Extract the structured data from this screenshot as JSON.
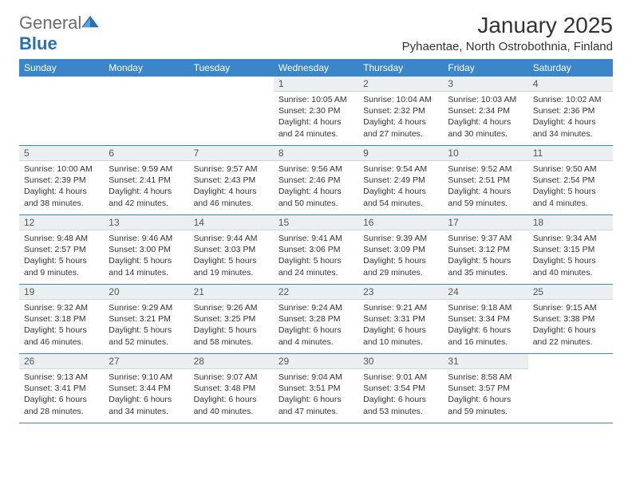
{
  "logo": {
    "text_part1": "General",
    "text_part2": "Blue",
    "icon_color": "#2a6fb5",
    "text_color": "#6b6b6b"
  },
  "title": "January 2025",
  "location": "Pyhaentae, North Ostrobothnia, Finland",
  "colors": {
    "header_bg": "#3a86c8",
    "header_text": "#ffffff",
    "daynum_bg": "#eceff1",
    "border": "#3a86c8",
    "text": "#333333"
  },
  "day_names": [
    "Sunday",
    "Monday",
    "Tuesday",
    "Wednesday",
    "Thursday",
    "Friday",
    "Saturday"
  ],
  "weeks": [
    [
      null,
      null,
      null,
      {
        "n": "1",
        "sunrise": "10:05 AM",
        "sunset": "2:30 PM",
        "daylight": "4 hours and 24 minutes."
      },
      {
        "n": "2",
        "sunrise": "10:04 AM",
        "sunset": "2:32 PM",
        "daylight": "4 hours and 27 minutes."
      },
      {
        "n": "3",
        "sunrise": "10:03 AM",
        "sunset": "2:34 PM",
        "daylight": "4 hours and 30 minutes."
      },
      {
        "n": "4",
        "sunrise": "10:02 AM",
        "sunset": "2:36 PM",
        "daylight": "4 hours and 34 minutes."
      }
    ],
    [
      {
        "n": "5",
        "sunrise": "10:00 AM",
        "sunset": "2:39 PM",
        "daylight": "4 hours and 38 minutes."
      },
      {
        "n": "6",
        "sunrise": "9:59 AM",
        "sunset": "2:41 PM",
        "daylight": "4 hours and 42 minutes."
      },
      {
        "n": "7",
        "sunrise": "9:57 AM",
        "sunset": "2:43 PM",
        "daylight": "4 hours and 46 minutes."
      },
      {
        "n": "8",
        "sunrise": "9:56 AM",
        "sunset": "2:46 PM",
        "daylight": "4 hours and 50 minutes."
      },
      {
        "n": "9",
        "sunrise": "9:54 AM",
        "sunset": "2:49 PM",
        "daylight": "4 hours and 54 minutes."
      },
      {
        "n": "10",
        "sunrise": "9:52 AM",
        "sunset": "2:51 PM",
        "daylight": "4 hours and 59 minutes."
      },
      {
        "n": "11",
        "sunrise": "9:50 AM",
        "sunset": "2:54 PM",
        "daylight": "5 hours and 4 minutes."
      }
    ],
    [
      {
        "n": "12",
        "sunrise": "9:48 AM",
        "sunset": "2:57 PM",
        "daylight": "5 hours and 9 minutes."
      },
      {
        "n": "13",
        "sunrise": "9:46 AM",
        "sunset": "3:00 PM",
        "daylight": "5 hours and 14 minutes."
      },
      {
        "n": "14",
        "sunrise": "9:44 AM",
        "sunset": "3:03 PM",
        "daylight": "5 hours and 19 minutes."
      },
      {
        "n": "15",
        "sunrise": "9:41 AM",
        "sunset": "3:06 PM",
        "daylight": "5 hours and 24 minutes."
      },
      {
        "n": "16",
        "sunrise": "9:39 AM",
        "sunset": "3:09 PM",
        "daylight": "5 hours and 29 minutes."
      },
      {
        "n": "17",
        "sunrise": "9:37 AM",
        "sunset": "3:12 PM",
        "daylight": "5 hours and 35 minutes."
      },
      {
        "n": "18",
        "sunrise": "9:34 AM",
        "sunset": "3:15 PM",
        "daylight": "5 hours and 40 minutes."
      }
    ],
    [
      {
        "n": "19",
        "sunrise": "9:32 AM",
        "sunset": "3:18 PM",
        "daylight": "5 hours and 46 minutes."
      },
      {
        "n": "20",
        "sunrise": "9:29 AM",
        "sunset": "3:21 PM",
        "daylight": "5 hours and 52 minutes."
      },
      {
        "n": "21",
        "sunrise": "9:26 AM",
        "sunset": "3:25 PM",
        "daylight": "5 hours and 58 minutes."
      },
      {
        "n": "22",
        "sunrise": "9:24 AM",
        "sunset": "3:28 PM",
        "daylight": "6 hours and 4 minutes."
      },
      {
        "n": "23",
        "sunrise": "9:21 AM",
        "sunset": "3:31 PM",
        "daylight": "6 hours and 10 minutes."
      },
      {
        "n": "24",
        "sunrise": "9:18 AM",
        "sunset": "3:34 PM",
        "daylight": "6 hours and 16 minutes."
      },
      {
        "n": "25",
        "sunrise": "9:15 AM",
        "sunset": "3:38 PM",
        "daylight": "6 hours and 22 minutes."
      }
    ],
    [
      {
        "n": "26",
        "sunrise": "9:13 AM",
        "sunset": "3:41 PM",
        "daylight": "6 hours and 28 minutes."
      },
      {
        "n": "27",
        "sunrise": "9:10 AM",
        "sunset": "3:44 PM",
        "daylight": "6 hours and 34 minutes."
      },
      {
        "n": "28",
        "sunrise": "9:07 AM",
        "sunset": "3:48 PM",
        "daylight": "6 hours and 40 minutes."
      },
      {
        "n": "29",
        "sunrise": "9:04 AM",
        "sunset": "3:51 PM",
        "daylight": "6 hours and 47 minutes."
      },
      {
        "n": "30",
        "sunrise": "9:01 AM",
        "sunset": "3:54 PM",
        "daylight": "6 hours and 53 minutes."
      },
      {
        "n": "31",
        "sunrise": "8:58 AM",
        "sunset": "3:57 PM",
        "daylight": "6 hours and 59 minutes."
      },
      null
    ]
  ],
  "labels": {
    "sunrise": "Sunrise:",
    "sunset": "Sunset:",
    "daylight": "Daylight:"
  }
}
